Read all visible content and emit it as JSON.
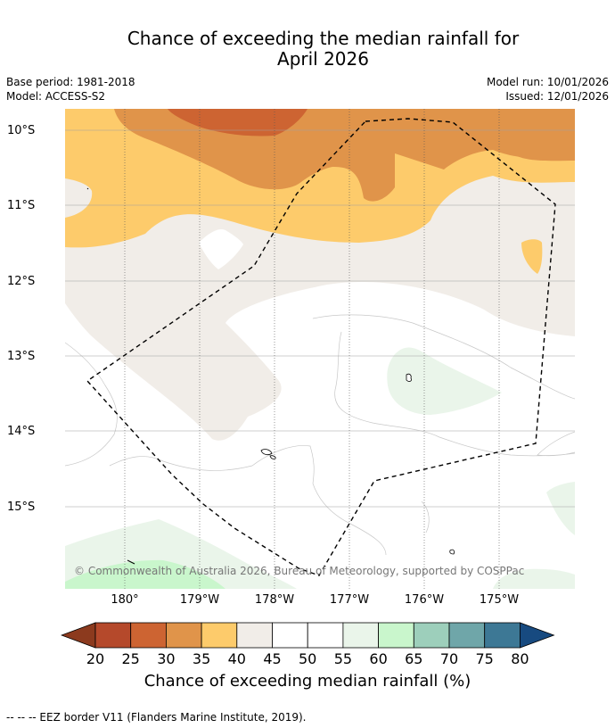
{
  "title_line1": "Chance of exceeding the median rainfall for",
  "title_line2": "April 2026",
  "base_period": "Base period: 1981-2018",
  "model": "Model: ACCESS-S2",
  "model_run": "Model run: 10/01/2026",
  "issued": "Issued: 12/01/2026",
  "lat_labels": [
    "10°S",
    "11°S",
    "12°S",
    "13°S",
    "14°S",
    "15°S"
  ],
  "lon_labels": [
    "180°",
    "179°W",
    "178°W",
    "177°W",
    "176°W",
    "175°W"
  ],
  "copyright": "© Commonwealth of Australia 2026, Bureau of Meteorology, supported by COSPPac",
  "colorbar": {
    "ticks": [
      "20",
      "25",
      "30",
      "35",
      "40",
      "45",
      "50",
      "55",
      "60",
      "65",
      "70",
      "75",
      "80"
    ],
    "colors": [
      "#8c3a1e",
      "#b5492b",
      "#cd6432",
      "#e0944a",
      "#fdcb6b",
      "#f1ede8",
      "#ffffff",
      "#ffffff",
      "#eaf5ea",
      "#c9f6cc",
      "#9dcfbb",
      "#6fa6a9",
      "#3d7895",
      "#174a80"
    ],
    "title": "Chance of exceeding median rainfall (%)"
  },
  "footer": "--  --  -- EEZ border V11 (Flanders Marine Institute, 2019)."
}
